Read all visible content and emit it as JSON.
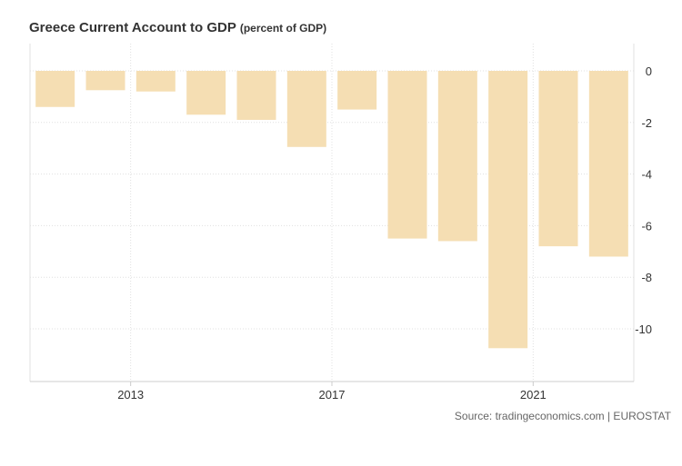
{
  "title": "Greece Current Account to GDP",
  "subtitle": "(percent of GDP)",
  "source": "Source: tradingeconomics.com | EUROSTAT",
  "colors": {
    "bar": "#f5deb3",
    "grid": "#e0e0e0",
    "axis": "#cccccc",
    "tick_text": "#333333"
  },
  "chart_data": {
    "type": "bar",
    "x": [
      2012,
      2013,
      2014,
      2015,
      2016,
      2017,
      2018,
      2019,
      2020,
      2021,
      2022,
      2023
    ],
    "values": [
      -1.4,
      -0.75,
      -0.8,
      -1.7,
      -1.9,
      -2.95,
      -1.5,
      -6.5,
      -6.6,
      -10.75,
      -6.8,
      -7.2
    ],
    "x_ticks": [
      "2013",
      "2017",
      "2021"
    ],
    "y_ticks": [
      "0",
      "-2",
      "-4",
      "-6",
      "-8",
      "-10"
    ],
    "ylim": [
      -12,
      1
    ],
    "grid": true,
    "y_axis_side": "right"
  }
}
